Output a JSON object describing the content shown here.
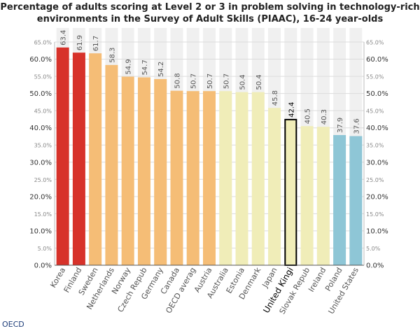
{
  "title": {
    "line1": "Percentage of adults scoring at Level 2 or 3 in problem solving in technology-rich",
    "line2": "environments in the Survey of Adult Skills (PIAAC), 16-24 year-olds"
  },
  "source": "OECD",
  "chart_data": {
    "type": "bar",
    "title": "Percentage of adults scoring at Level 2 or 3 in problem solving in technology-rich environments in the Survey of Adult Skills (PIAAC), 16-24 year-olds",
    "xlabel": "",
    "ylabel": "",
    "ylim": [
      0,
      65
    ],
    "grid": true,
    "categories": [
      "Korea",
      "Finland",
      "Sweden",
      "Netherlands",
      "Norway",
      "Czech Repub",
      "Germany",
      "Canada",
      "OECD averag",
      "Austria",
      "Australia",
      "Estonia",
      "Denmark",
      "Japan",
      "United Kingi",
      "Slovak Repub",
      "Ireland",
      "Poland",
      "United States"
    ],
    "values": [
      63.4,
      61.9,
      61.7,
      58.3,
      54.9,
      54.7,
      54.2,
      50.8,
      50.7,
      50.7,
      50.7,
      50.4,
      50.4,
      45.8,
      42.4,
      40.5,
      40.3,
      37.9,
      37.6
    ],
    "value_labels": [
      "63.4",
      "61.9",
      "61.7",
      "58.3",
      "54.9",
      "54.7",
      "54.2",
      "50.8",
      "50.7",
      "50.7",
      "50.7",
      "50.4",
      "50.4",
      "45.8",
      "42.4",
      "40.5",
      "40.3",
      "37.9",
      "37.6"
    ],
    "bar_colors": [
      "#d7322a",
      "#d7322a",
      "#f5bd76",
      "#f5bd76",
      "#f5bd76",
      "#f5bd76",
      "#f5bd76",
      "#f5bd76",
      "#f5bd76",
      "#f5bd76",
      "#f0edb8",
      "#f0edb8",
      "#f0edb8",
      "#f0edb8",
      "#f0edb8",
      "#f0edb8",
      "#f0edb8",
      "#8ec6d6",
      "#8ec6d6"
    ],
    "highlight_index": 14,
    "highlight_stroke": "#000000",
    "highlight_fill": "#f0edb8",
    "column_band_color": "#f0f0f0",
    "y_ticks": [
      {
        "value": 0,
        "label": "0.0%",
        "minor": false
      },
      {
        "value": 5,
        "label": "5.0%",
        "minor": true
      },
      {
        "value": 10,
        "label": "10.0%",
        "minor": false
      },
      {
        "value": 15,
        "label": "15.0%",
        "minor": true
      },
      {
        "value": 20,
        "label": "20.0%",
        "minor": false
      },
      {
        "value": 25,
        "label": "25.0%",
        "minor": true
      },
      {
        "value": 30,
        "label": "30.0%",
        "minor": false
      },
      {
        "value": 35,
        "label": "35.0%",
        "minor": true
      },
      {
        "value": 40,
        "label": "40.0%",
        "minor": false
      },
      {
        "value": 45,
        "label": "45.0%",
        "minor": true
      },
      {
        "value": 50,
        "label": "50.0%",
        "minor": false
      },
      {
        "value": 55,
        "label": "55.0%",
        "minor": true
      },
      {
        "value": 60,
        "label": "60.0%",
        "minor": false
      },
      {
        "value": 65,
        "label": "65.0%",
        "minor": true
      }
    ]
  }
}
